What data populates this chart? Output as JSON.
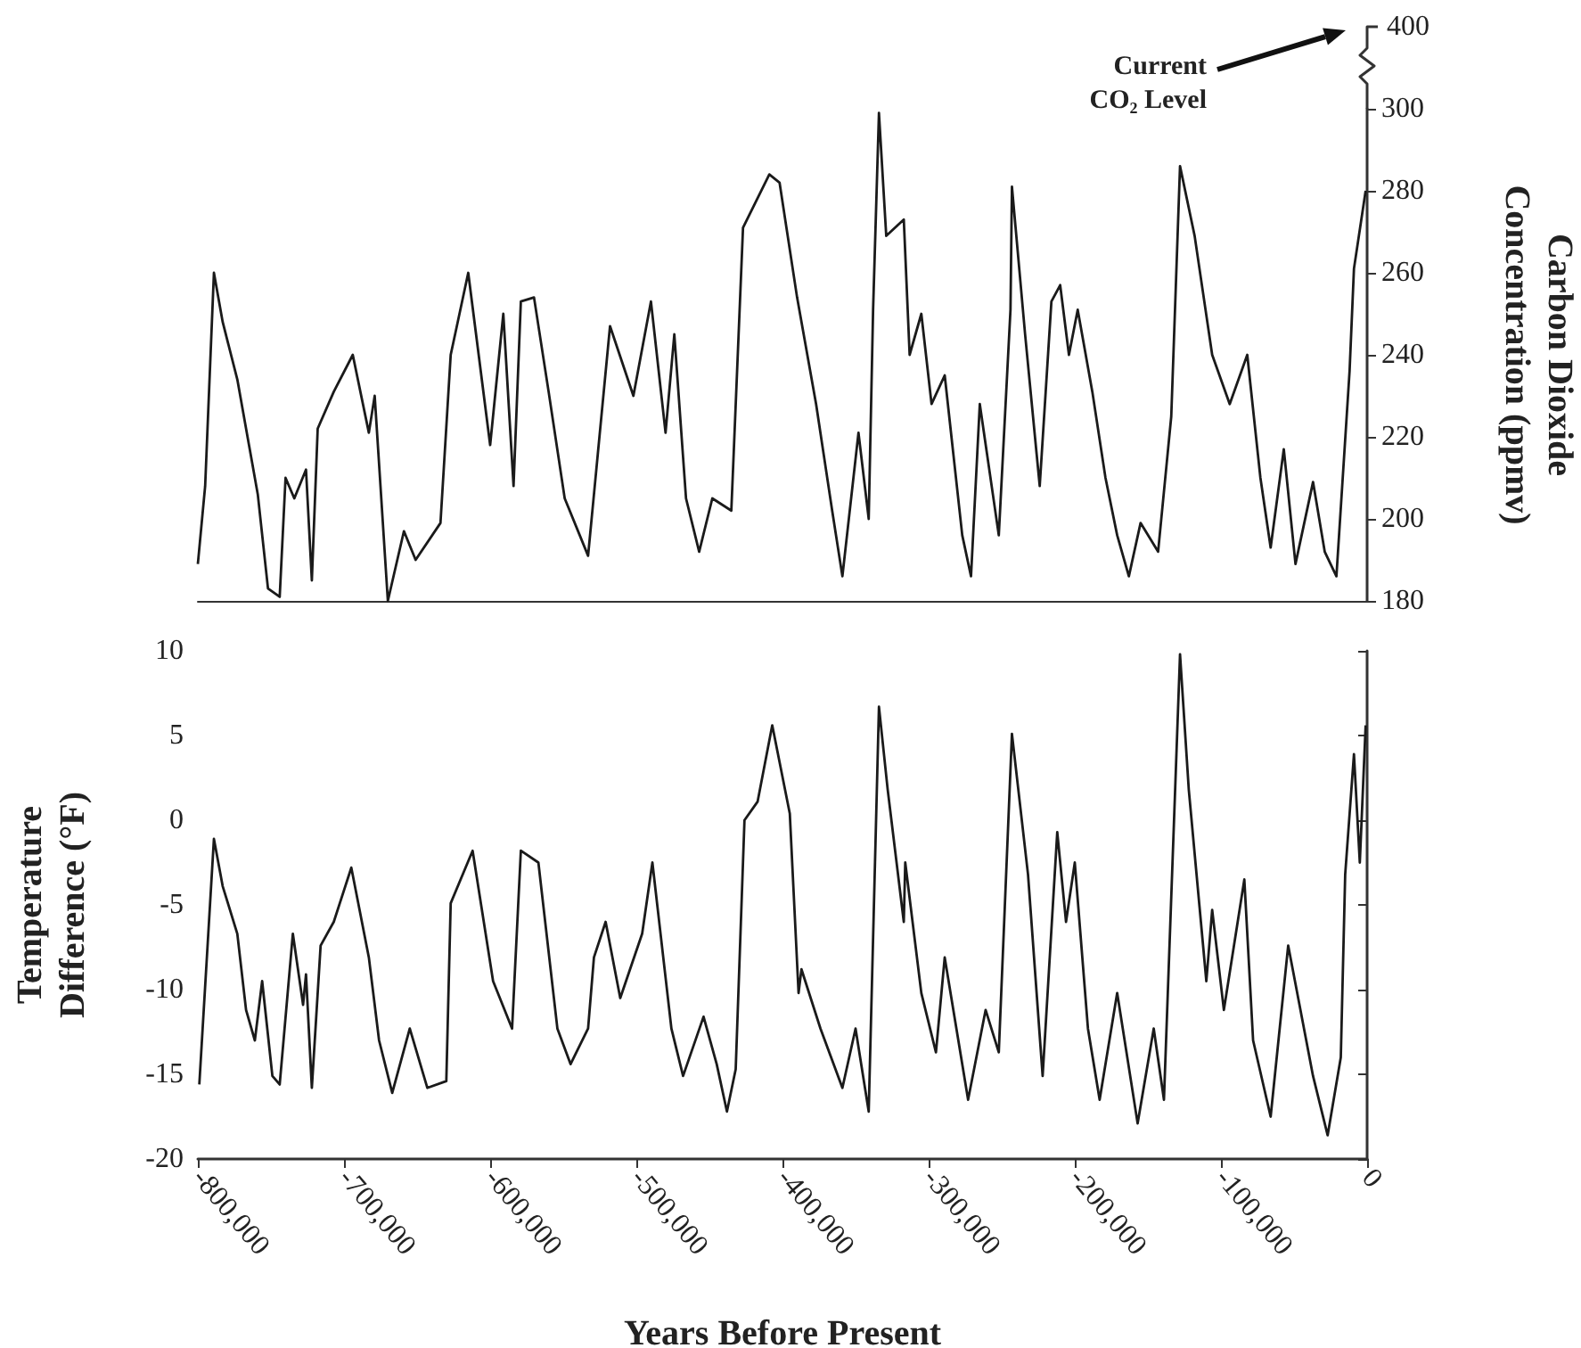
{
  "chart_data": [
    {
      "type": "line",
      "xlim": [
        -800000,
        0
      ],
      "y2lim": [
        180,
        300
      ],
      "y2ticks": [
        180,
        200,
        220,
        240,
        260,
        280,
        300
      ],
      "y2label": "Carbon Dioxide Concentration (ppmv)",
      "tick_labels": "y",
      "annotations": [
        "Current CO₂ Level",
        "400"
      ],
      "series": [
        {
          "color": "#1a1a1a",
          "axis": "y2",
          "x": [
            -800000,
            -795000,
            -789000,
            -783000,
            -773000,
            -765000,
            -759000,
            -752000,
            -744000,
            -740000,
            -734000,
            -726000,
            -722000,
            -718000,
            -707000,
            -694000,
            -683000,
            -679000,
            -670000,
            -659000,
            -651000,
            -634000,
            -627000,
            -615000,
            -600000,
            -591000,
            -584000,
            -579000,
            -570000,
            -560000,
            -549000,
            -533000,
            -518000,
            -502000,
            -490000,
            -480000,
            -474000,
            -466000,
            -457000,
            -448000,
            -435000,
            -427000,
            -409000,
            -402000,
            -390000,
            -377000,
            -366000,
            -359000,
            -348000,
            -341000,
            -338000,
            -334000,
            -329000,
            -317000,
            -313000,
            -305000,
            -298000,
            -289000,
            -277000,
            -271000,
            -265000,
            -252000,
            -244000,
            -243000,
            -234000,
            -224000,
            -216000,
            -210000,
            -204000,
            -198000,
            -188000,
            -179000,
            -171000,
            -163000,
            -155000,
            -143000,
            -134000,
            -128000,
            -118000,
            -106000,
            -94000,
            -82000,
            -73000,
            -66000,
            -57000,
            -49000,
            -37000,
            -29000,
            -21000,
            -12000,
            -9000,
            -1000
          ],
          "values": [
            189,
            208,
            260,
            248,
            234,
            218,
            206,
            183,
            181,
            210,
            205,
            212,
            185,
            222,
            231,
            240,
            221,
            230,
            180,
            197,
            190,
            199,
            240,
            260,
            218,
            250,
            208,
            253,
            254,
            231,
            205,
            191,
            247,
            230,
            253,
            221,
            245,
            205,
            192,
            205,
            202,
            271,
            284,
            282,
            254,
            228,
            202,
            186,
            221,
            200,
            251,
            299,
            269,
            273,
            240,
            250,
            228,
            235,
            196,
            186,
            228,
            196,
            251,
            281,
            245,
            208,
            253,
            257,
            240,
            251,
            231,
            210,
            196,
            186,
            199,
            192,
            225,
            286,
            269,
            240,
            228,
            240,
            210,
            193,
            217,
            189,
            209,
            192,
            186,
            236,
            261,
            280
          ]
        }
      ]
    },
    {
      "type": "line",
      "xlim": [
        -800000,
        0
      ],
      "xticks": [
        {
          "value": -800000,
          "label": "-800,000"
        },
        {
          "value": -700000,
          "label": "-700,000"
        },
        {
          "value": -600000,
          "label": "-600,000"
        },
        {
          "value": -500000,
          "label": "-500,000"
        },
        {
          "value": -400000,
          "label": "-400,000"
        },
        {
          "value": -300000,
          "label": "-300,000"
        },
        {
          "value": -200000,
          "label": "-200,000"
        },
        {
          "value": -100000,
          "label": "-100,000"
        },
        0
      ],
      "ylim": [
        -20,
        10
      ],
      "yticks": [
        -20,
        -15,
        -10,
        -5,
        0,
        5,
        10
      ],
      "xlabel": "Years Before Present",
      "ylabel": "Temperature Difference (°F)",
      "series": [
        {
          "color": "#1a1a1a",
          "x": [
            -799000,
            -789000,
            -783000,
            -773000,
            -767000,
            -761000,
            -756000,
            -749000,
            -744000,
            -735000,
            -728000,
            -726000,
            -722000,
            -716000,
            -707000,
            -695000,
            -683000,
            -676000,
            -667000,
            -655000,
            -643000,
            -630000,
            -627000,
            -612000,
            -598000,
            -585000,
            -579000,
            -567000,
            -554000,
            -545000,
            -533000,
            -529000,
            -521000,
            -511000,
            -496000,
            -489000,
            -476000,
            -468000,
            -454000,
            -445000,
            -438000,
            -432000,
            -426000,
            -417000,
            -407000,
            -395000,
            -389000,
            -387000,
            -374000,
            -359000,
            -350000,
            -341000,
            -334000,
            -328000,
            -317000,
            -316000,
            -305000,
            -295000,
            -289000,
            -273000,
            -261000,
            -252000,
            -243000,
            -232000,
            -222000,
            -212000,
            -206000,
            -200000,
            -191000,
            -183000,
            -171000,
            -157000,
            -146000,
            -139000,
            -128000,
            -122000,
            -110000,
            -106000,
            -98000,
            -84000,
            -78000,
            -66000,
            -54000,
            -37000,
            -27000,
            -18000,
            -15000,
            -9000,
            -5000,
            -1000
          ],
          "values": [
            -15.6,
            -1.1,
            -3.9,
            -6.7,
            -11.2,
            -13,
            -9.5,
            -15.1,
            -15.6,
            -6.7,
            -10.9,
            -9.1,
            -15.8,
            -7.4,
            -6,
            -2.8,
            -8.1,
            -13,
            -16.1,
            -12.3,
            -15.8,
            -15.4,
            -4.9,
            -1.8,
            -9.5,
            -12.3,
            -1.8,
            -2.5,
            -12.3,
            -14.4,
            -12.3,
            -8.1,
            -6,
            -10.5,
            -6.7,
            -2.5,
            -12.3,
            -15.1,
            -11.6,
            -14.4,
            -17.2,
            -14.7,
            0,
            1.1,
            5.6,
            0.4,
            -10.2,
            -8.8,
            -12.3,
            -15.8,
            -12.3,
            -17.2,
            6.7,
            1.8,
            -6,
            -2.5,
            -10.2,
            -13.7,
            -8.1,
            -16.5,
            -11.2,
            -13.7,
            5.1,
            -3.2,
            -15.1,
            -0.7,
            -6,
            -2.5,
            -12.3,
            -16.5,
            -10.2,
            -17.9,
            -12.3,
            -16.5,
            9.8,
            1.8,
            -9.5,
            -5.3,
            -11.2,
            -3.5,
            -13,
            -17.5,
            -7.4,
            -15.1,
            -18.6,
            -14,
            -3.2,
            3.9,
            -2.5,
            5.6
          ]
        }
      ]
    }
  ]
}
